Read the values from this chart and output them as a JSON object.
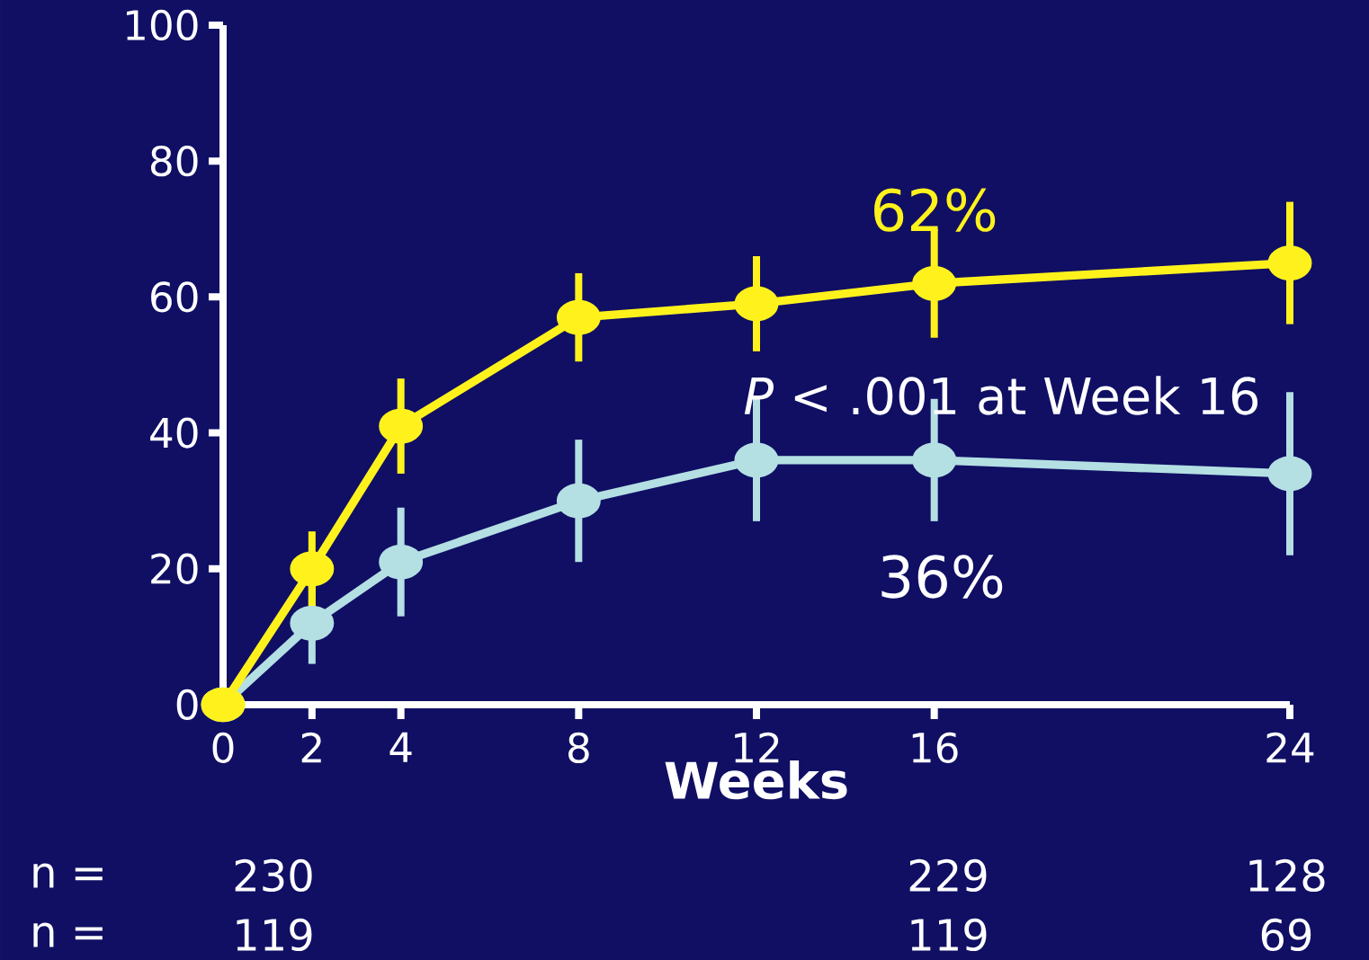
{
  "chart_data": {
    "type": "line",
    "xlabel": "Weeks",
    "x": [
      0,
      2,
      4,
      8,
      12,
      16,
      24
    ],
    "series": [
      {
        "color": "#fff21c",
        "values": [
          0,
          20,
          41,
          57,
          59,
          62,
          65
        ],
        "errors": [
          null,
          5.5,
          7,
          6.5,
          7,
          8,
          9
        ]
      },
      {
        "color": "#b4dfe3",
        "values": [
          0,
          12,
          21,
          30,
          36,
          36,
          34
        ],
        "errors": [
          null,
          6,
          8,
          9,
          9,
          9,
          12
        ]
      }
    ],
    "xlim": [
      0,
      24
    ],
    "xticks": [
      0,
      2,
      4,
      8,
      12,
      16,
      24
    ],
    "ylim": [
      0,
      100
    ],
    "yticks": [
      0,
      20,
      40,
      60,
      80,
      100
    ],
    "marker": "circle",
    "annotations": [
      {
        "text": "62%",
        "x": 16,
        "y": 62
      },
      {
        "text": "36%",
        "x": 16,
        "y": 36
      },
      "*P* < .001 at Week 16",
      "n =",
      "230",
      "229",
      "128",
      "n =",
      "119",
      "119",
      "69"
    ]
  }
}
